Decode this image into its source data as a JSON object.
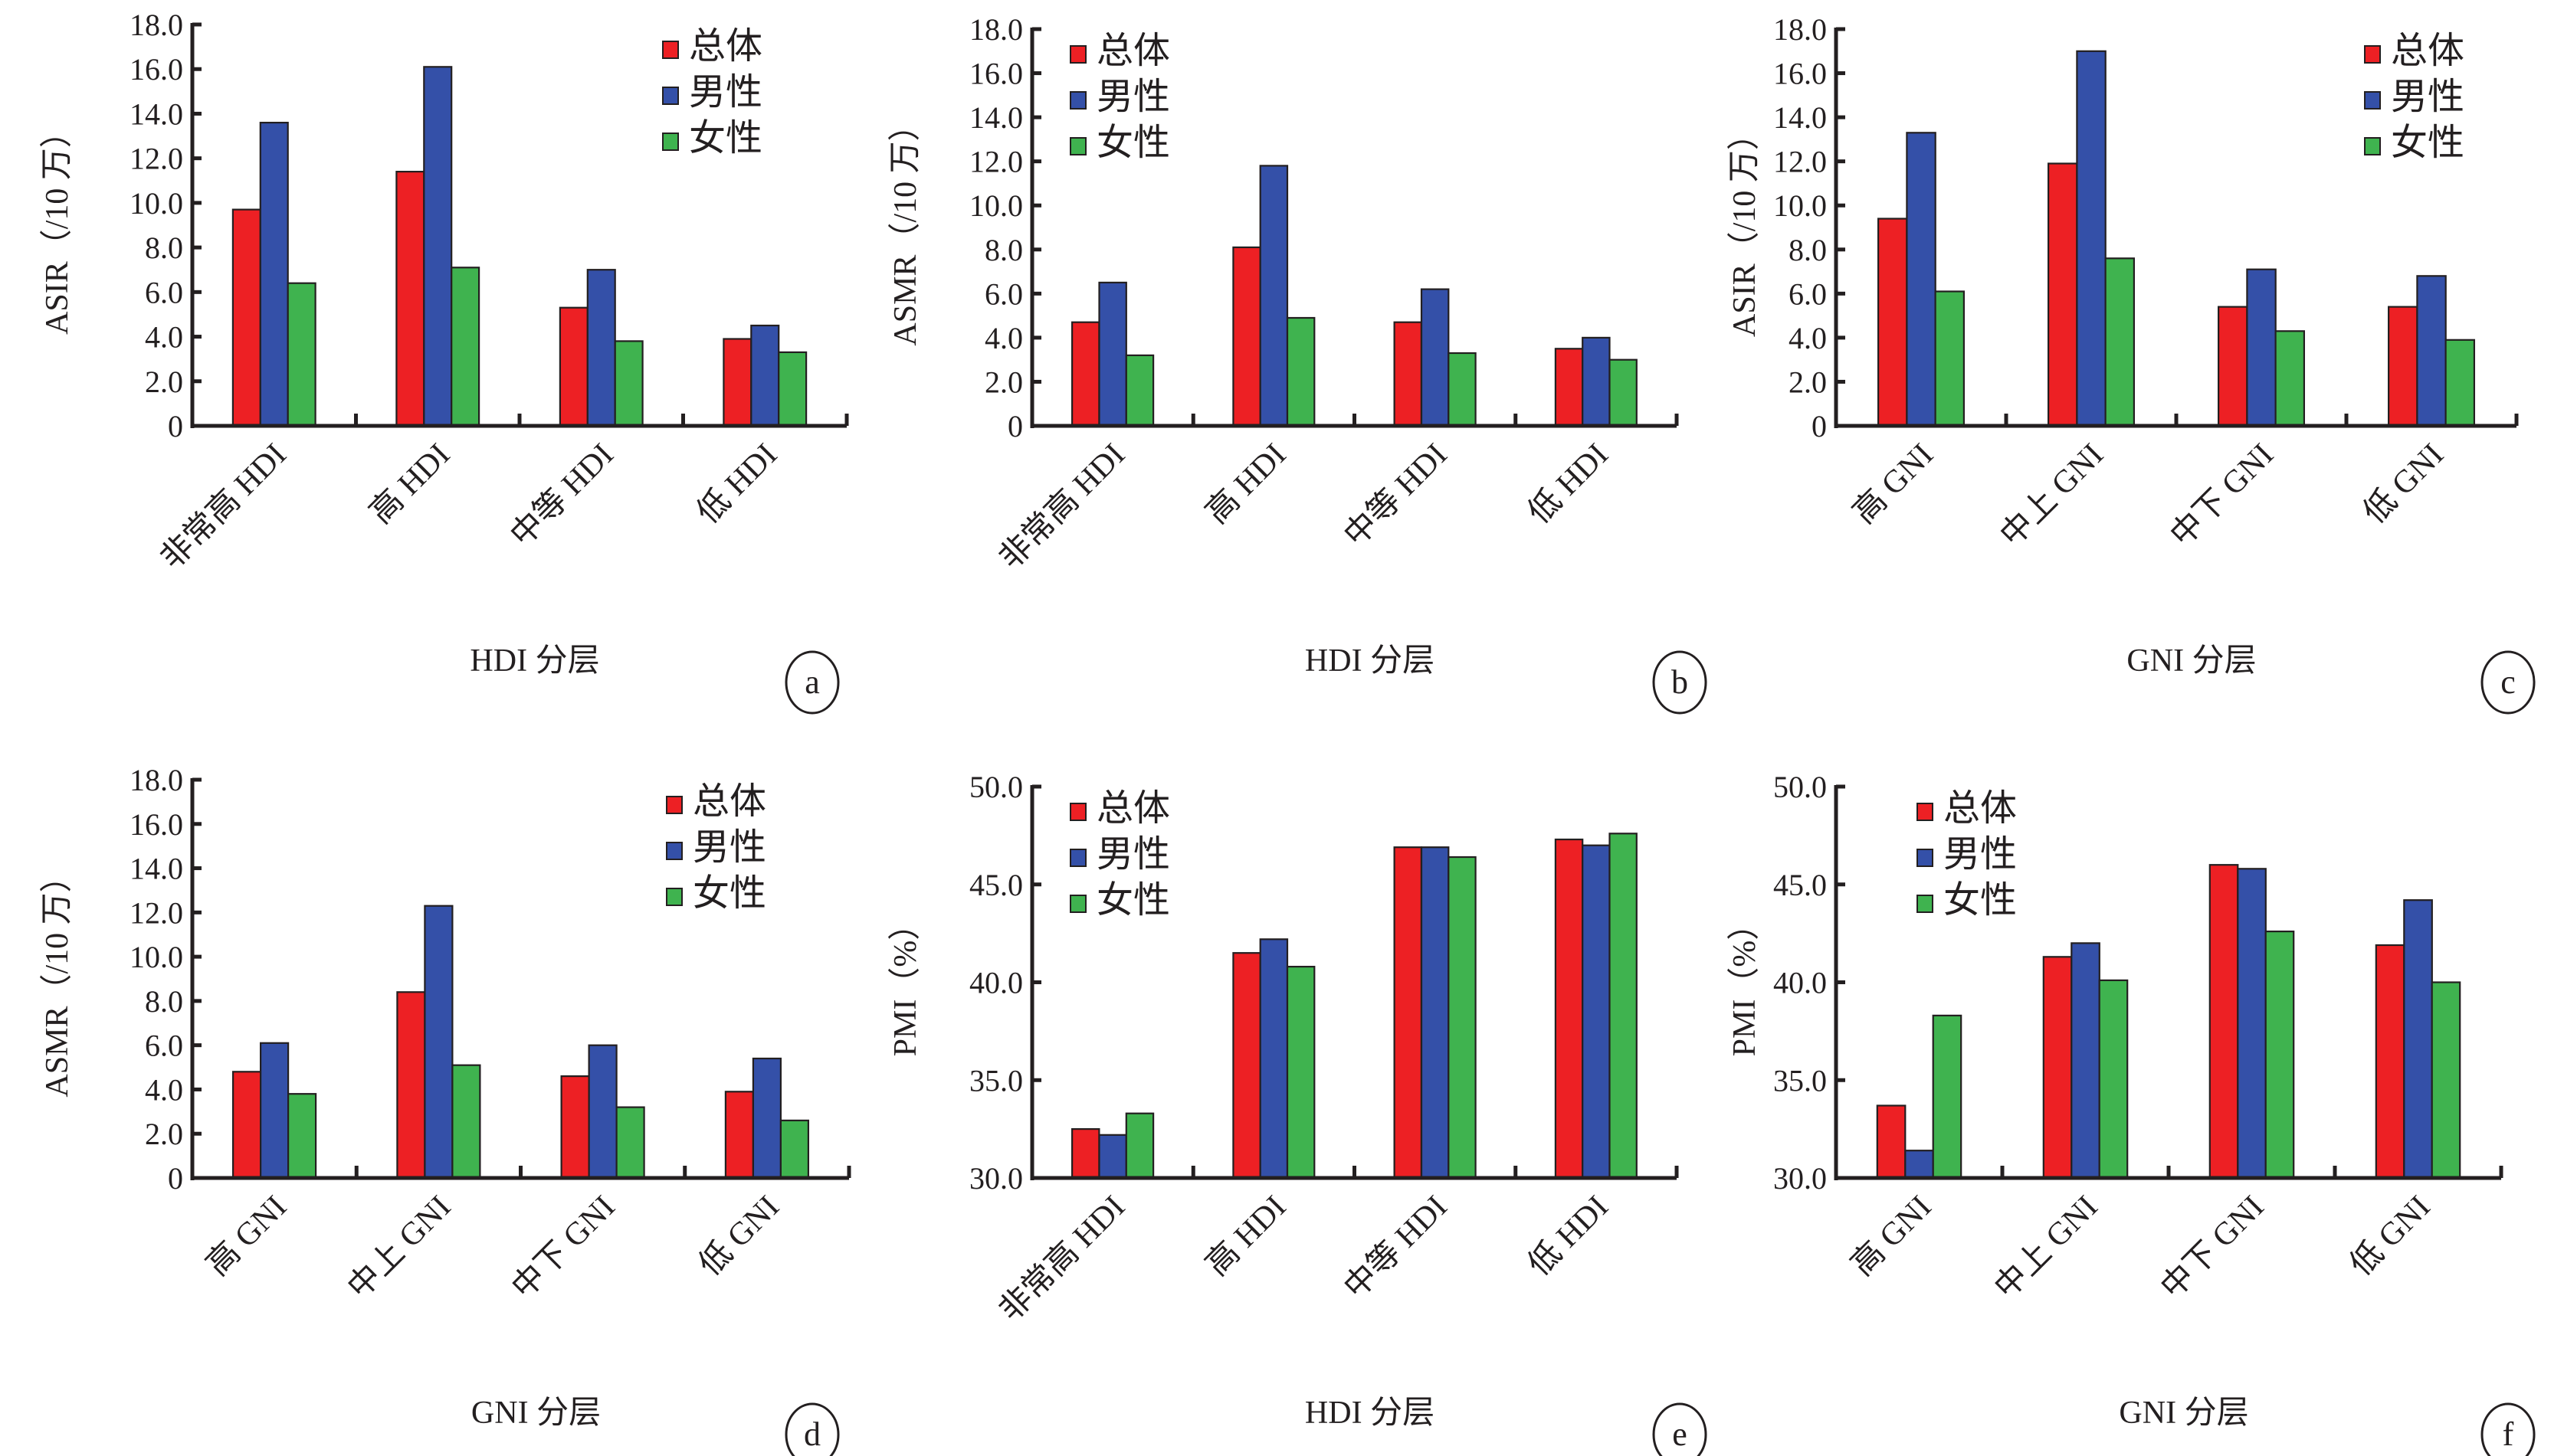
{
  "legend": [
    "总体",
    "男性",
    "女性"
  ],
  "colors": {
    "总体": "#ed2024",
    "男性": "#3450a8",
    "女性": "#3fb34f"
  },
  "chart_data": [
    {
      "panel": "a",
      "type": "bar",
      "ylabel": "ASIR（/10 万）",
      "xlabel": "HDI 分层",
      "ylim": [
        0,
        18
      ],
      "yticks": [
        0,
        2,
        4,
        6,
        8,
        10,
        12,
        14,
        16,
        18
      ],
      "ytick_labels": [
        "0",
        "2.0",
        "4.0",
        "6.0",
        "8.0",
        "10.0",
        "12.0",
        "14.0",
        "16.0",
        "18.0"
      ],
      "categories": [
        "非常高 HDI",
        "高 HDI",
        "中等 HDI",
        "低 HDI"
      ],
      "legend_position": "top-right",
      "series": [
        {
          "name": "总体",
          "values": [
            9.7,
            11.4,
            5.3,
            3.9
          ]
        },
        {
          "name": "男性",
          "values": [
            13.6,
            16.1,
            7.0,
            4.5
          ]
        },
        {
          "name": "女性",
          "values": [
            6.4,
            7.1,
            3.8,
            3.3
          ]
        }
      ]
    },
    {
      "panel": "b",
      "type": "bar",
      "ylabel": "ASMR（/10 万）",
      "xlabel": "HDI 分层",
      "ylim": [
        0,
        18
      ],
      "yticks": [
        0,
        2,
        4,
        6,
        8,
        10,
        12,
        14,
        16,
        18
      ],
      "ytick_labels": [
        "0",
        "2.0",
        "4.0",
        "6.0",
        "8.0",
        "10.0",
        "12.0",
        "14.0",
        "16.0",
        "18.0"
      ],
      "categories": [
        "非常高 HDI",
        "高 HDI",
        "中等 HDI",
        "低 HDI"
      ],
      "legend_position": "top-left",
      "series": [
        {
          "name": "总体",
          "values": [
            4.7,
            8.1,
            4.7,
            3.5
          ]
        },
        {
          "name": "男性",
          "values": [
            6.5,
            11.8,
            6.2,
            4.0
          ]
        },
        {
          "name": "女性",
          "values": [
            3.2,
            4.9,
            3.3,
            3.0
          ]
        }
      ]
    },
    {
      "panel": "c",
      "type": "bar",
      "ylabel": "ASIR（/10 万）",
      "xlabel": "GNI 分层",
      "ylim": [
        0,
        18
      ],
      "yticks": [
        0,
        2,
        4,
        6,
        8,
        10,
        12,
        14,
        16,
        18
      ],
      "ytick_labels": [
        "0",
        "2.0",
        "4.0",
        "6.0",
        "8.0",
        "10.0",
        "12.0",
        "14.0",
        "16.0",
        "18.0"
      ],
      "categories": [
        "高 GNI",
        "中上 GNI",
        "中下 GNI",
        "低 GNI"
      ],
      "legend_position": "top-right",
      "series": [
        {
          "name": "总体",
          "values": [
            9.4,
            11.9,
            5.4,
            5.4
          ]
        },
        {
          "name": "男性",
          "values": [
            13.3,
            17.0,
            7.1,
            6.8
          ]
        },
        {
          "name": "女性",
          "values": [
            6.1,
            7.6,
            4.3,
            3.9
          ]
        }
      ]
    },
    {
      "panel": "d",
      "type": "bar",
      "ylabel": "ASMR（/10 万）",
      "xlabel": "GNI 分层",
      "ylim": [
        0,
        18
      ],
      "yticks": [
        0,
        2,
        4,
        6,
        8,
        10,
        12,
        14,
        16,
        18
      ],
      "ytick_labels": [
        "0",
        "2.0",
        "4.0",
        "6.0",
        "8.0",
        "10.0",
        "12.0",
        "14.0",
        "16.0",
        "18.0"
      ],
      "categories": [
        "高 GNI",
        "中上 GNI",
        "中下 GNI",
        "低 GNI"
      ],
      "legend_position": "top-right",
      "series": [
        {
          "name": "总体",
          "values": [
            4.8,
            8.4,
            4.6,
            3.9
          ]
        },
        {
          "name": "男性",
          "values": [
            6.1,
            12.3,
            6.0,
            5.4
          ]
        },
        {
          "name": "女性",
          "values": [
            3.8,
            5.1,
            3.2,
            2.6
          ]
        }
      ]
    },
    {
      "panel": "e",
      "type": "bar",
      "ylabel": "PMI（%）",
      "xlabel": "HDI 分层",
      "ylim": [
        30,
        50
      ],
      "yticks": [
        30,
        35,
        40,
        45,
        50
      ],
      "ytick_labels": [
        "30.0",
        "35.0",
        "40.0",
        "45.0",
        "50.0"
      ],
      "categories": [
        "非常高 HDI",
        "高 HDI",
        "中等 HDI",
        "低 HDI"
      ],
      "legend_position": "top-left",
      "series": [
        {
          "name": "总体",
          "values": [
            32.5,
            41.5,
            46.9,
            47.3
          ]
        },
        {
          "name": "男性",
          "values": [
            32.2,
            42.2,
            46.9,
            47.0
          ]
        },
        {
          "name": "女性",
          "values": [
            33.3,
            40.8,
            46.4,
            47.6
          ]
        }
      ]
    },
    {
      "panel": "f",
      "type": "bar",
      "ylabel": "PMI（%）",
      "xlabel": "GNI 分层",
      "ylim": [
        30,
        50
      ],
      "yticks": [
        30,
        35,
        40,
        45,
        50
      ],
      "ytick_labels": [
        "30.0",
        "35.0",
        "40.0",
        "45.0",
        "50.0"
      ],
      "categories": [
        "高 GNI",
        "中上 GNI",
        "中下 GNI",
        "低 GNI"
      ],
      "legend_position": "top-left",
      "series": [
        {
          "name": "总体",
          "values": [
            33.7,
            41.3,
            46.0,
            41.9
          ]
        },
        {
          "name": "男性",
          "values": [
            31.4,
            42.0,
            45.8,
            44.2
          ]
        },
        {
          "name": "女性",
          "values": [
            38.3,
            40.1,
            42.6,
            40.0
          ]
        }
      ]
    }
  ]
}
